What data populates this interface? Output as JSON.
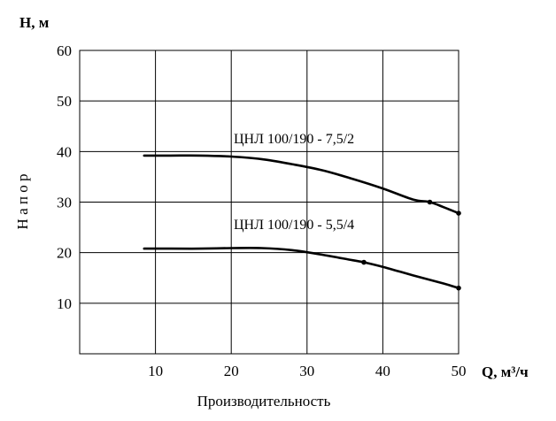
{
  "chart_data": {
    "type": "line",
    "ylabel_unit": "H, м",
    "xlabel_unit": "Q, м³/ч",
    "ylabel": "Н а п о р",
    "xlabel": "Производительность",
    "xlim": [
      0,
      50
    ],
    "ylim": [
      0,
      60
    ],
    "x_ticks": [
      10,
      20,
      30,
      40,
      50
    ],
    "y_ticks": [
      10,
      20,
      30,
      40,
      50,
      60
    ],
    "grid": true,
    "series": [
      {
        "name": "ЦНЛ 100/190 - 7,5/2",
        "x": [
          8.5,
          12,
          16,
          20,
          24,
          28,
          32,
          36,
          40,
          44,
          46.2,
          48,
          50
        ],
        "y": [
          39.2,
          39.2,
          39.2,
          39.0,
          38.5,
          37.5,
          36.3,
          34.6,
          32.7,
          30.5,
          30.0,
          29.0,
          27.8
        ],
        "markers_at": [
          46.2,
          50
        ]
      },
      {
        "name": "ЦНЛ 100/190 - 5,5/4",
        "x": [
          8.5,
          12,
          16,
          20,
          24,
          28,
          32,
          36,
          37.5,
          40,
          44,
          48,
          50
        ],
        "y": [
          20.8,
          20.8,
          20.8,
          20.9,
          20.9,
          20.5,
          19.6,
          18.5,
          18.1,
          17.2,
          15.5,
          13.9,
          13.0
        ],
        "markers_at": [
          37.5,
          50
        ]
      }
    ]
  }
}
